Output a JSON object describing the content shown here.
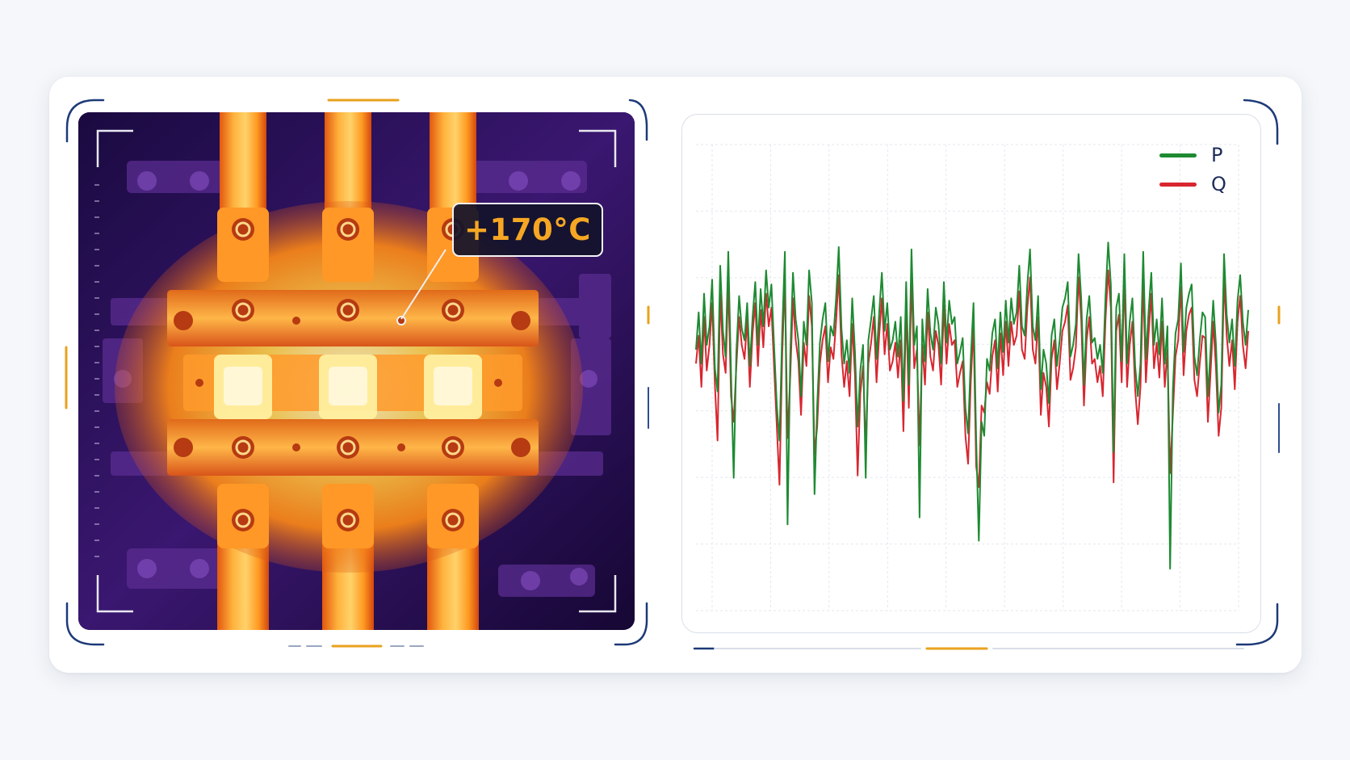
{
  "thermal": {
    "temperature_label": "+170°C",
    "palette": {
      "background": "#1a0838",
      "hot": "#fff2a8",
      "warm": "#ff9a1e",
      "cool": "#7a2fb5"
    }
  },
  "chart_data": {
    "type": "line",
    "title": "",
    "xlabel": "",
    "ylabel": "",
    "legend_position": "top-right",
    "grid": true,
    "x_range": [
      0,
      160
    ],
    "y_range": [
      -10,
      10
    ],
    "series": [
      {
        "name": "P",
        "color": "#1e8a32",
        "values": [
          1.2,
          2.8,
          0.6,
          3.6,
          1.4,
          2.2,
          4.2,
          0.4,
          -0.6,
          4.8,
          2.0,
          0.9,
          5.4,
          0.2,
          -4.3,
          1.1,
          3.5,
          2.1,
          1.6,
          3.2,
          0.5,
          2.6,
          4.1,
          1.4,
          3.8,
          2.2,
          4.6,
          3.0,
          4.0,
          1.3,
          -1.2,
          -2.7,
          2.0,
          5.4,
          -6.3,
          1.0,
          4.5,
          2.5,
          1.6,
          -0.8,
          2.4,
          1.4,
          4.6,
          3.2,
          -5.0,
          -1.2,
          1.5,
          2.5,
          3.2,
          0.7,
          2.2,
          1.8,
          3.4,
          5.6,
          2.1,
          0.6,
          1.6,
          0.2,
          3.4,
          1.1,
          -2.1,
          0.3,
          1.4,
          -4.3,
          1.6,
          2.5,
          3.5,
          0.8,
          2.8,
          4.5,
          2.0,
          3.2,
          1.2,
          1.6,
          2.4,
          0.9,
          2.6,
          -1.0,
          4.1,
          -0.3,
          5.5,
          1.4,
          2.2,
          -6.0,
          2.5,
          0.7,
          3.8,
          1.9,
          1.2,
          3.0,
          2.3,
          0.6,
          4.1,
          1.5,
          3.3,
          2.3,
          2.6,
          0.6,
          1.1,
          1.7,
          -1.3,
          -2.4,
          0.8,
          3.2,
          -2.6,
          -7.0,
          -1.9,
          -2.5,
          0.8,
          0.3,
          1.9,
          2.5,
          0.4,
          2.8,
          1.1,
          3.3,
          1.5,
          3.4,
          2.3,
          2.8,
          4.8,
          2.2,
          1.8,
          4.0,
          5.5,
          2.2,
          1.6,
          3.5,
          -0.5,
          1.2,
          0.6,
          -1.1,
          1.8,
          2.5,
          0.5,
          1.6,
          3.0,
          3.4,
          4.1,
          0.9,
          1.4,
          2.3,
          5.3,
          3.4,
          -0.3,
          2.5,
          3.5,
          1.5,
          1.7,
          0.8,
          1.4,
          0.2,
          3.5,
          5.8,
          4.0,
          -3.2,
          3.0,
          3.6,
          0.7,
          5.3,
          0.6,
          2.4,
          3.4,
          0.5,
          -0.8,
          0.6,
          5.4,
          0.8,
          2.8,
          4.5,
          1.4,
          2.5,
          1.0,
          3.4,
          0.6,
          2.2,
          -8.2,
          -0.5,
          1.9,
          2.5,
          4.9,
          1.1,
          3.0,
          3.6,
          4.0,
          0.9,
          0.1,
          1.6,
          2.8,
          2.6,
          -0.8,
          1.2,
          3.3,
          1.4,
          -1.5,
          -0.3,
          5.3,
          2.7,
          1.5,
          2.5,
          0.5,
          3.3,
          4.4,
          2.4,
          1.4,
          2.9
        ],
        "note_hidden": ""
      },
      {
        "name": "Q",
        "color": "#d8262f",
        "values": [
          0.6,
          1.8,
          -0.4,
          2.6,
          0.3,
          1.4,
          3.2,
          -0.3,
          -2.7,
          3.6,
          1.0,
          0.2,
          4.1,
          -0.8,
          -1.9,
          0.5,
          2.6,
          1.4,
          0.8,
          2.5,
          -0.4,
          1.9,
          3.2,
          0.5,
          2.9,
          1.3,
          3.6,
          2.2,
          3.0,
          0.4,
          -2.1,
          -4.6,
          1.0,
          4.2,
          -2.6,
          0.1,
          3.4,
          1.6,
          0.7,
          -1.6,
          1.5,
          0.5,
          3.5,
          2.2,
          -3.3,
          -2.1,
          0.6,
          1.6,
          2.2,
          -0.2,
          1.3,
          0.8,
          2.4,
          4.4,
          1.0,
          -0.4,
          0.7,
          -0.8,
          2.3,
          0.1,
          -4.2,
          -0.7,
          0.5,
          -3.0,
          0.6,
          1.5,
          2.6,
          -0.2,
          1.8,
          3.4,
          1.0,
          2.3,
          0.3,
          0.7,
          1.5,
          0.0,
          1.6,
          -2.3,
          3.1,
          -1.3,
          4.3,
          0.4,
          1.2,
          -2.9,
          1.4,
          -0.3,
          2.8,
          0.9,
          0.3,
          2.0,
          1.4,
          -0.3,
          3.1,
          0.6,
          2.3,
          1.4,
          1.6,
          -0.4,
          0.2,
          0.7,
          -2.5,
          -3.7,
          -0.2,
          2.2,
          -3.8,
          -4.7,
          -1.2,
          -1.5,
          -0.2,
          -0.7,
          0.9,
          1.6,
          -0.6,
          1.9,
          0.1,
          2.4,
          0.5,
          2.4,
          1.4,
          1.8,
          3.7,
          1.2,
          0.8,
          3.0,
          4.3,
          1.2,
          0.6,
          2.6,
          -1.6,
          0.2,
          -0.4,
          -2.1,
          0.8,
          1.6,
          -0.5,
          0.6,
          2.0,
          2.4,
          3.1,
          -0.1,
          0.4,
          1.3,
          4.3,
          2.5,
          -1.2,
          1.6,
          2.6,
          0.6,
          0.8,
          -0.2,
          0.5,
          -0.8,
          2.5,
          4.6,
          3.0,
          -4.5,
          2.0,
          2.7,
          -0.2,
          4.3,
          -0.4,
          1.4,
          2.4,
          -0.5,
          -2.0,
          -0.4,
          4.2,
          -0.2,
          1.8,
          3.6,
          0.4,
          1.5,
          0.0,
          2.4,
          -0.4,
          1.2,
          -4.1,
          -1.6,
          0.9,
          1.6,
          3.9,
          0.1,
          2.0,
          2.7,
          3.0,
          -0.1,
          -0.8,
          0.6,
          1.8,
          1.7,
          -1.9,
          0.2,
          2.4,
          0.4,
          -2.5,
          -1.3,
          4.3,
          1.8,
          0.5,
          1.6,
          -0.5,
          2.4,
          3.5,
          1.4,
          0.4,
          2.0
        ]
      }
    ]
  }
}
